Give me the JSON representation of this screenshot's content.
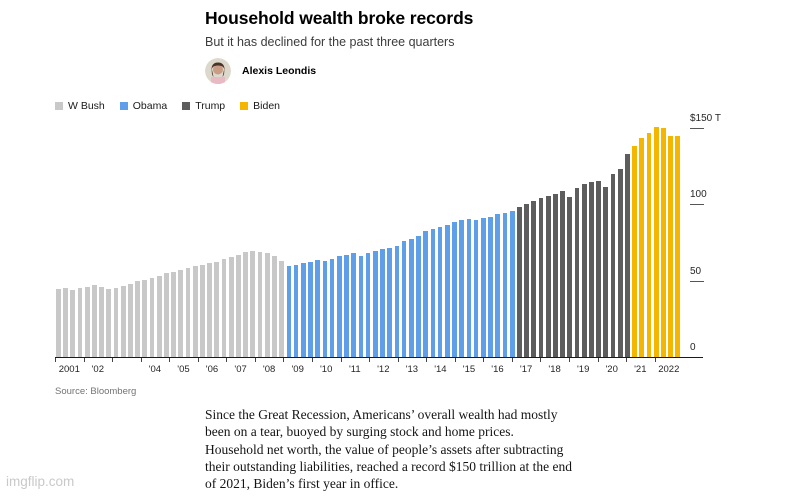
{
  "watermark": "imgflip.com",
  "header": {
    "title": "Household wealth broke records",
    "subtitle": "But it has declined for the past three quarters",
    "byline": "Alexis Leondis"
  },
  "legend": [
    {
      "label": "W Bush",
      "color": "#c8c8c8"
    },
    {
      "label": "Obama",
      "color": "#5f9ee9"
    },
    {
      "label": "Trump",
      "color": "#5d5d5d"
    },
    {
      "label": "Biden",
      "color": "#f5b600"
    }
  ],
  "chart_data": {
    "type": "bar",
    "title": "Household wealth broke records",
    "unit": "trillions of US dollars",
    "frequency": "quarterly",
    "x_range": "2001 Q1 to 2022 Q3",
    "ylim": [
      0,
      155
    ],
    "grid": false,
    "legend_position": "top-left",
    "yticks": [
      {
        "label": "$150 T",
        "value": 150
      },
      {
        "label": "100",
        "value": 100
      },
      {
        "label": "50",
        "value": 50
      },
      {
        "label": "0",
        "value": 0
      }
    ],
    "x_year_labels": [
      "2001",
      "'02",
      "",
      "'04",
      "'05",
      "'06",
      "'07",
      "'08",
      "'09",
      "'10",
      "'11",
      "'12",
      "'13",
      "'14",
      "'15",
      "'16",
      "'17",
      "'18",
      "'19",
      "'20",
      "'21",
      "2022"
    ],
    "series": [
      {
        "name": "W Bush",
        "color": "#c8c8c8",
        "start": "2001 Q1",
        "values": [
          44.5,
          45.5,
          44,
          45.5,
          46,
          47.5,
          46,
          44.5,
          45,
          46.5,
          48,
          49.5,
          50.5,
          51.5,
          53,
          55,
          56,
          57,
          58.5,
          59.5,
          60.5,
          61.5,
          62.5,
          64,
          65.5,
          67,
          68.5,
          69.5,
          69,
          68,
          66,
          63
        ]
      },
      {
        "name": "Obama",
        "color": "#5f9ee9",
        "start": "2009 Q1",
        "values": [
          59.5,
          60,
          61.5,
          62,
          63.5,
          63,
          64.5,
          66,
          67,
          68,
          66.5,
          68,
          69.5,
          70.5,
          71.5,
          72.5,
          76,
          77.5,
          79,
          82.5,
          84,
          85.5,
          86.5,
          88.5,
          89.5,
          90.5,
          89.5,
          91,
          91.5,
          93.5,
          94.5,
          95.5
        ]
      },
      {
        "name": "Trump",
        "color": "#5d5d5d",
        "start": "2017 Q1",
        "values": [
          98.5,
          100,
          102.5,
          104,
          105.5,
          107,
          108.5,
          105,
          111,
          113.5,
          114.5,
          115.5,
          111.5,
          120,
          123.5,
          133
        ]
      },
      {
        "name": "Biden",
        "color": "#f5b600",
        "start": "2021 Q1",
        "values": [
          138.5,
          143.5,
          147,
          150.5,
          150,
          145,
          144.5
        ]
      }
    ]
  },
  "source": "Source: Bloomberg",
  "caption": {
    "lines": [
      "Since the Great Recession, Americans’ overall wealth had mostly",
      "been on a tear, buoyed by surging stock and home prices.",
      "Household net worth, the value of people’s assets after subtracting",
      "their outstanding liabilities, reached a record $150 trillion at the end",
      "of 2021, Biden’s first year in office."
    ]
  }
}
